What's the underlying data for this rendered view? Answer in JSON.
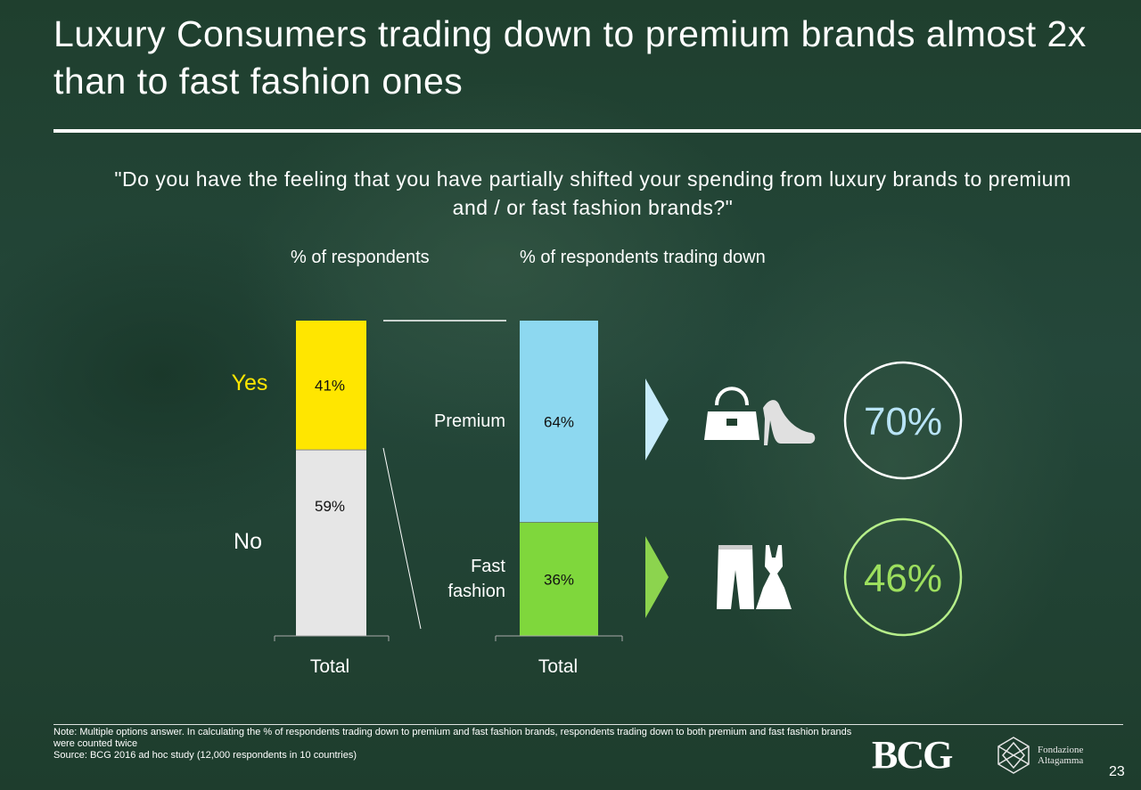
{
  "title": "Luxury Consumers trading down to premium brands almost 2x than to fast fashion ones",
  "question": "\"Do you have the feeling that you have partially shifted your spending from luxury brands to premium and / or fast fashion brands?\"",
  "chart_data": [
    {
      "type": "bar",
      "subtitle": "% of respondents",
      "categories": [
        "Total"
      ],
      "series": [
        {
          "name": "No",
          "values": [
            59
          ],
          "label": "59%",
          "color": "#e6e6e6"
        },
        {
          "name": "Yes",
          "values": [
            41
          ],
          "label": "41%",
          "color": "#ffe600"
        }
      ],
      "ylim": [
        0,
        100
      ]
    },
    {
      "type": "bar",
      "subtitle": "% of respondents trading down",
      "categories": [
        "Total"
      ],
      "series": [
        {
          "name": "Fast fashion",
          "values": [
            36
          ],
          "label": "36%",
          "color": "#7fd73c"
        },
        {
          "name": "Premium",
          "values": [
            64
          ],
          "label": "64%",
          "color": "#8dd8f0"
        }
      ],
      "ylim": [
        0,
        100
      ]
    }
  ],
  "left_labels": {
    "yes": "Yes",
    "no": "No",
    "total": "Total"
  },
  "right_labels": {
    "premium": "Premium",
    "fast_fashion_line1": "Fast",
    "fast_fashion_line2": "fashion",
    "total": "Total"
  },
  "callouts": [
    {
      "label": "70%",
      "color": "#b9e4f7",
      "icons": [
        "handbag-icon",
        "high-heel-icon"
      ]
    },
    {
      "label": "46%",
      "color": "#9ddf5e",
      "icons": [
        "jeans-icon",
        "dress-icon"
      ]
    }
  ],
  "footnote": {
    "note": "Note: Multiple options answer. In calculating the % of respondents trading down to premium and fast fashion brands, respondents trading down to both premium and fast fashion brands were counted twice",
    "source": "Source: BCG 2016 ad hoc study (12,000 respondents in 10 countries)"
  },
  "logos": {
    "bcg": "BCG",
    "altagamma_line1": "Fondazione",
    "altagamma_line2": "Altagamma"
  },
  "page_number": "23"
}
